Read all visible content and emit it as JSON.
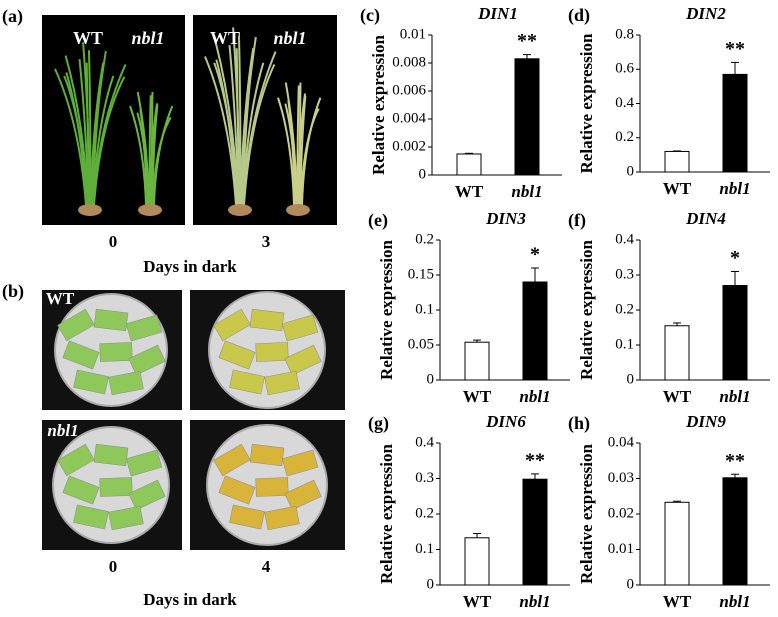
{
  "photo_panels": [
    {
      "label": "(a)",
      "genotypes": [
        "WT",
        "nbl1",
        "WT",
        "nbl1"
      ],
      "times": [
        0,
        3
      ],
      "xlabel": "Days in dark"
    },
    {
      "label": "(b)",
      "genotypes": [
        "WT",
        "nbl1"
      ],
      "times": [
        0,
        4
      ],
      "xlabel": "Days in dark"
    }
  ],
  "chart_data": [
    {
      "type": "bar",
      "panel": "(c)",
      "title": "DIN1",
      "ylabel": "Relative expression",
      "categories": [
        "WT",
        "nbl1"
      ],
      "values": [
        0.0015,
        0.0083
      ],
      "errors": [
        5e-05,
        0.0003
      ],
      "colors": [
        "#ffffff",
        "#000000"
      ],
      "annotation": "**",
      "ylim": [
        0,
        0.01
      ],
      "yticks": [
        0,
        0.002,
        0.004,
        0.006,
        0.008,
        0.01
      ]
    },
    {
      "type": "bar",
      "panel": "(d)",
      "title": "DIN2",
      "ylabel": "Relative expression",
      "categories": [
        "WT",
        "nbl1"
      ],
      "values": [
        0.12,
        0.57
      ],
      "errors": [
        0.003,
        0.07
      ],
      "colors": [
        "#ffffff",
        "#000000"
      ],
      "annotation": "**",
      "ylim": [
        0,
        0.8
      ],
      "yticks": [
        0,
        0.2,
        0.4,
        0.6,
        0.8
      ]
    },
    {
      "type": "bar",
      "panel": "(e)",
      "title": "DIN3",
      "ylabel": "Relative expression",
      "categories": [
        "WT",
        "nbl1"
      ],
      "values": [
        0.054,
        0.14
      ],
      "errors": [
        0.003,
        0.02
      ],
      "colors": [
        "#ffffff",
        "#000000"
      ],
      "annotation": "*",
      "ylim": [
        0,
        0.2
      ],
      "yticks": [
        0,
        0.05,
        0.1,
        0.15,
        0.2
      ]
    },
    {
      "type": "bar",
      "panel": "(f)",
      "title": "DIN4",
      "ylabel": "Relative expression",
      "categories": [
        "WT",
        "nbl1"
      ],
      "values": [
        0.155,
        0.27
      ],
      "errors": [
        0.008,
        0.04
      ],
      "colors": [
        "#ffffff",
        "#000000"
      ],
      "annotation": "*",
      "ylim": [
        0,
        0.4
      ],
      "yticks": [
        0,
        0.1,
        0.2,
        0.3,
        0.4
      ]
    },
    {
      "type": "bar",
      "panel": "(g)",
      "title": "DIN6",
      "ylabel": "Relative expression",
      "categories": [
        "WT",
        "nbl1"
      ],
      "values": [
        0.133,
        0.298
      ],
      "errors": [
        0.012,
        0.015
      ],
      "colors": [
        "#ffffff",
        "#000000"
      ],
      "annotation": "**",
      "ylim": [
        0,
        0.4
      ],
      "yticks": [
        0,
        0.1,
        0.2,
        0.3,
        0.4
      ]
    },
    {
      "type": "bar",
      "panel": "(h)",
      "title": "DIN9",
      "ylabel": "Relative expression",
      "categories": [
        "WT",
        "nbl1"
      ],
      "values": [
        0.0233,
        0.0302
      ],
      "errors": [
        0.0003,
        0.001
      ],
      "colors": [
        "#ffffff",
        "#000000"
      ],
      "annotation": "**",
      "ylim": [
        0,
        0.04
      ],
      "yticks": [
        0,
        0.01,
        0.02,
        0.03,
        0.04
      ]
    }
  ]
}
